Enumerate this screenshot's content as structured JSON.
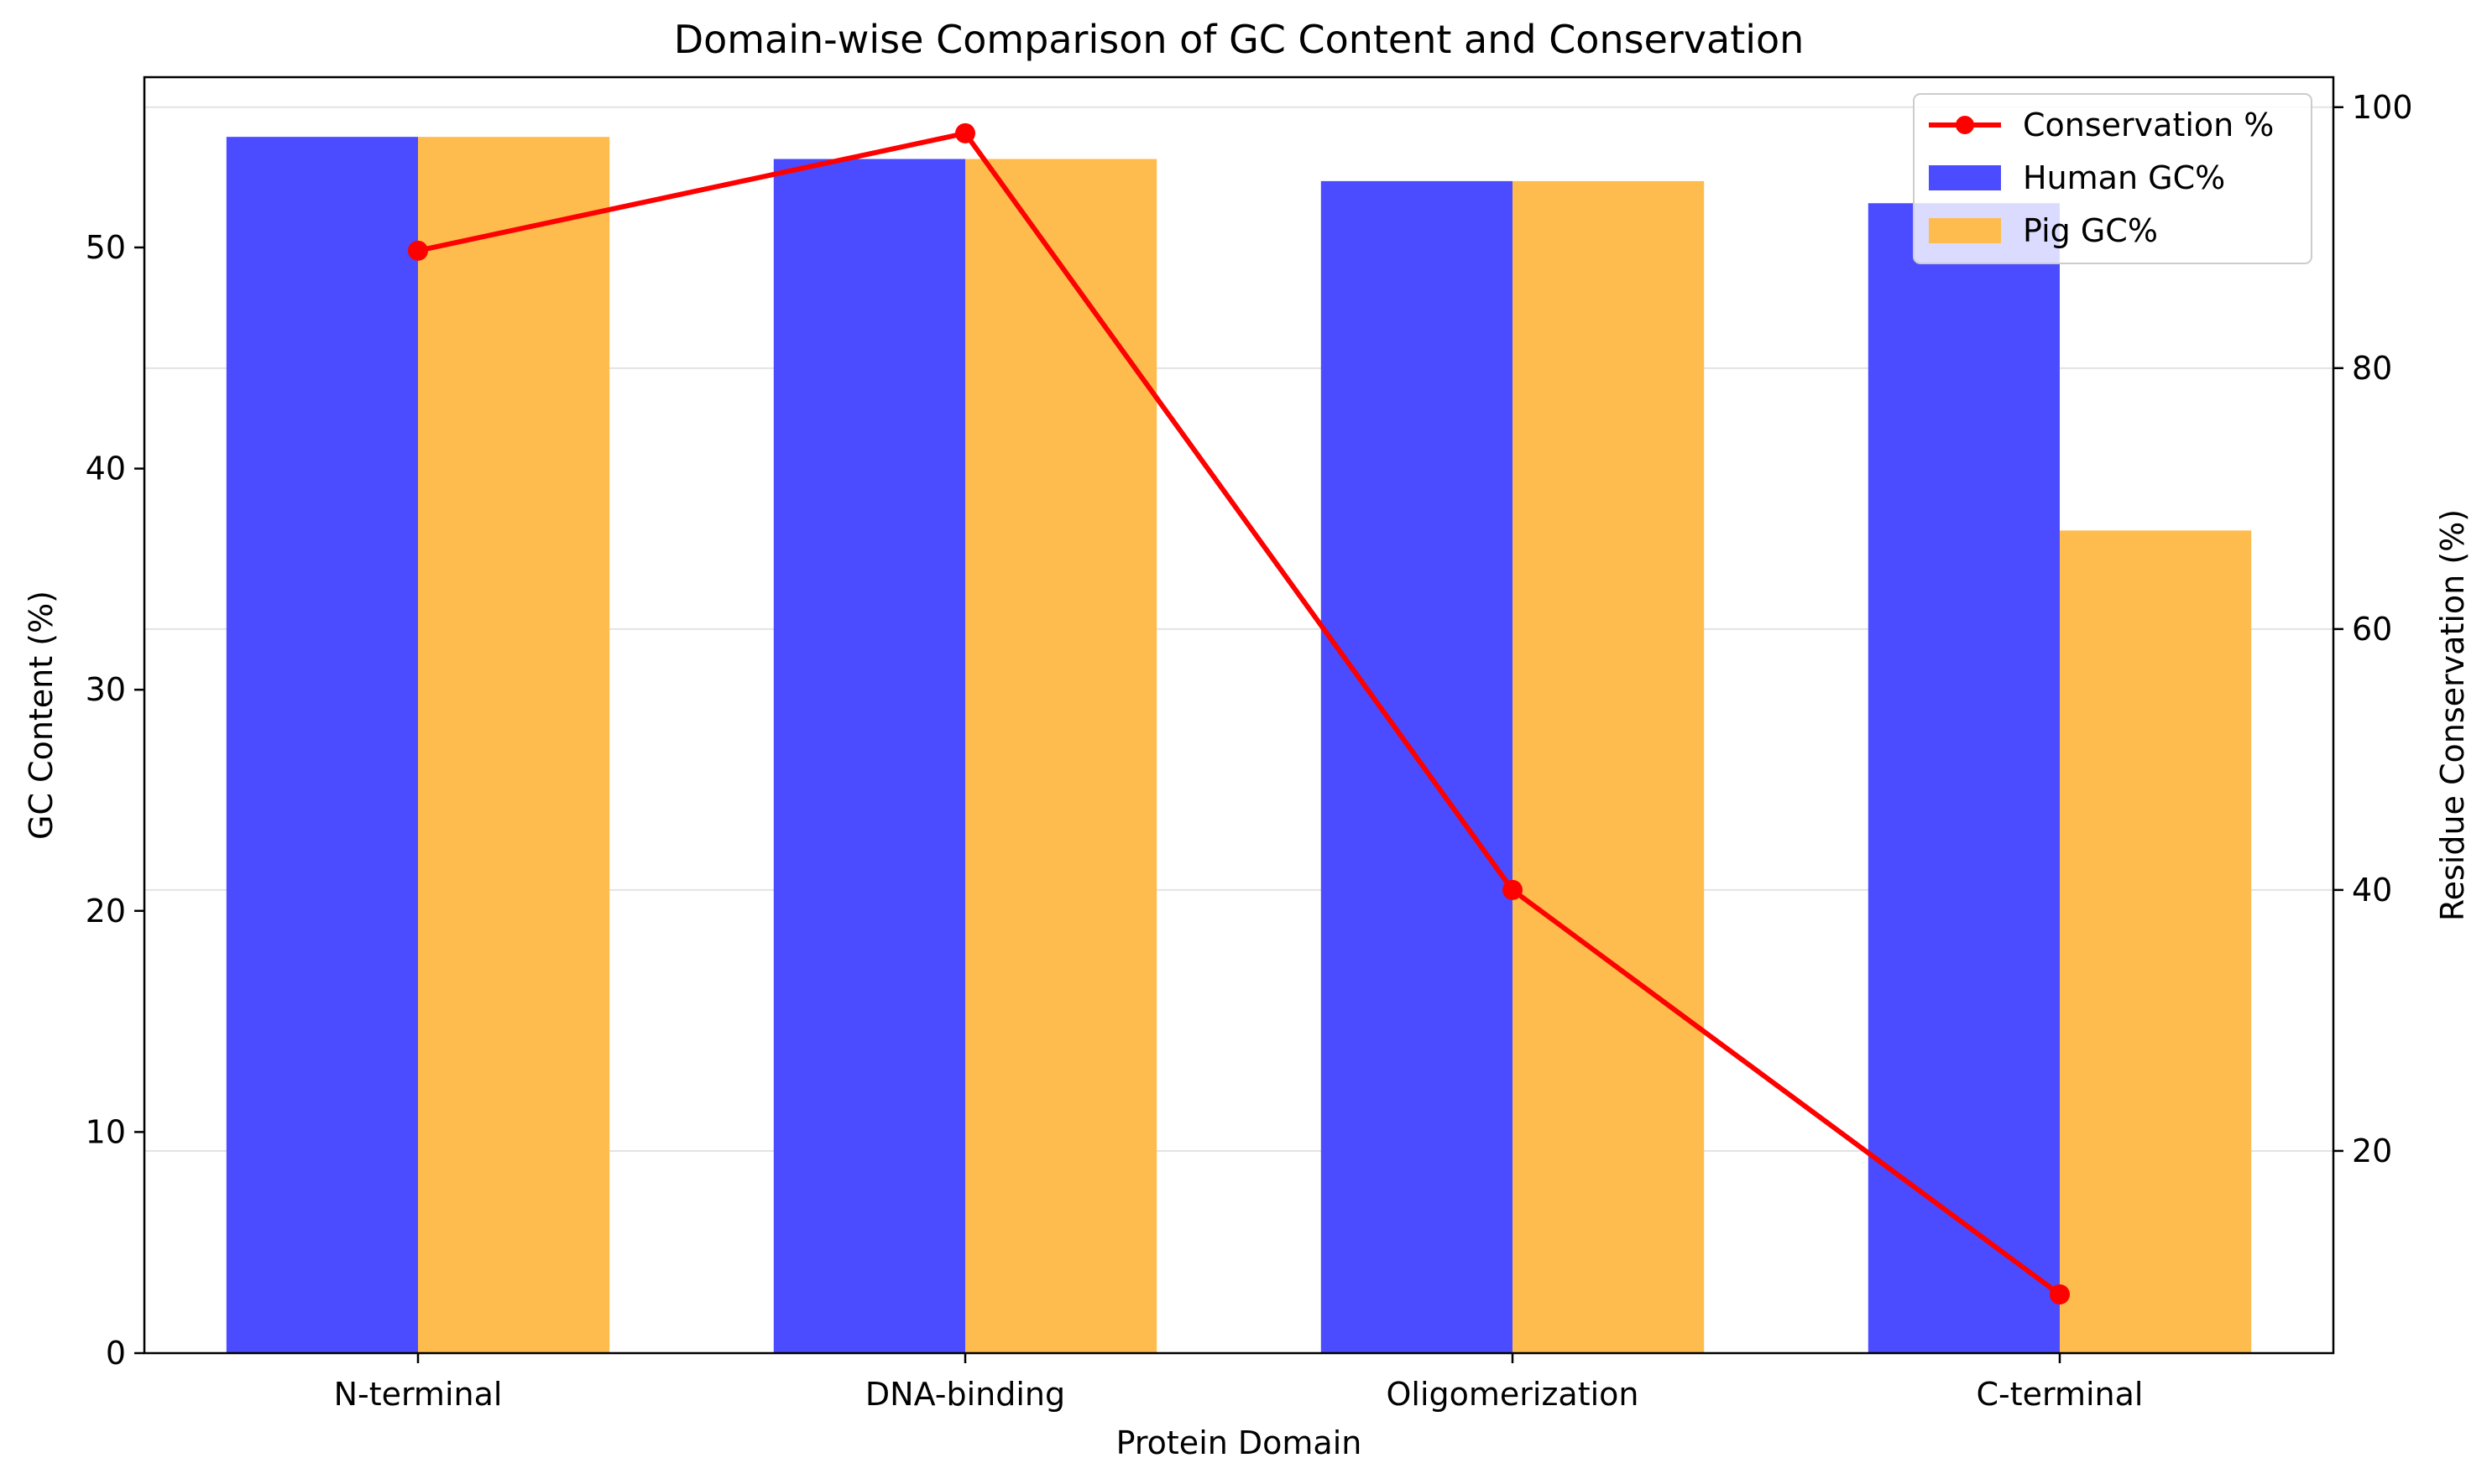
{
  "chart_data": {
    "type": "bar",
    "title": "Domain-wise Comparison of GC Content and Conservation",
    "xlabel": "Protein Domain",
    "ylabel": "GC Content (%)",
    "y2label": "Residue Conservation (%)",
    "categories": [
      "N-terminal",
      "DNA-binding",
      "Oligomerization",
      "C-terminal"
    ],
    "series": [
      {
        "name": "Human GC%",
        "kind": "bar",
        "axis": "left",
        "color": "#4b4bff",
        "values": [
          55,
          54,
          53,
          52
        ]
      },
      {
        "name": "Pig GC%",
        "kind": "bar",
        "axis": "left",
        "color": "#fdbc4d",
        "values": [
          55,
          54,
          53,
          37.2
        ]
      },
      {
        "name": "Conservation %",
        "kind": "line",
        "axis": "right",
        "color": "#ff0000",
        "values": [
          89,
          98,
          40,
          9
        ]
      }
    ],
    "ylim": [
      0,
      57.7
    ],
    "y2lim": [
      4.5,
      102.3
    ],
    "yticks": [
      0,
      10,
      20,
      30,
      40,
      50
    ],
    "y2ticks": [
      20,
      40,
      60,
      80,
      100
    ],
    "grid": "horizontal-right-axis",
    "legend_position": "top-right"
  }
}
